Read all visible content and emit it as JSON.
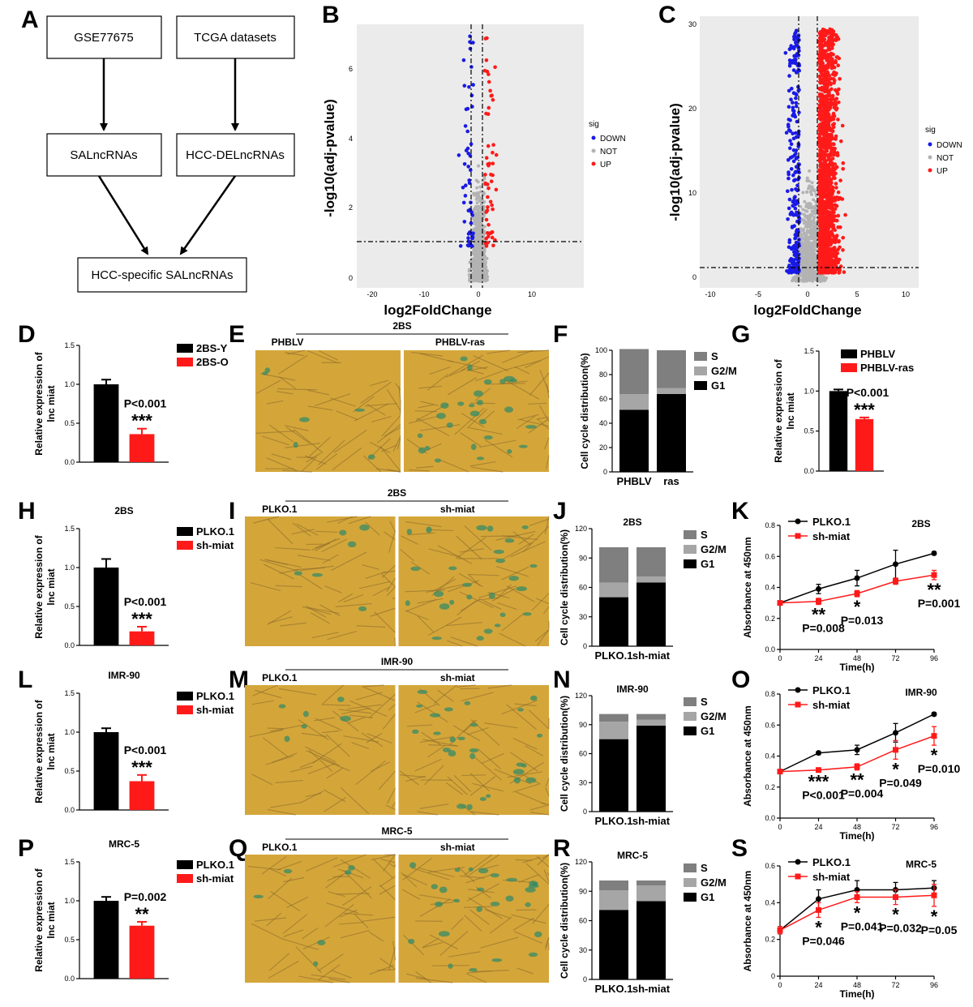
{
  "colors": {
    "red": "#ff1a1a",
    "blue": "#1a1ae6",
    "grey": "#b3b3b3",
    "black": "#000000",
    "g1": "#000000",
    "g2m": "#a6a6a6",
    "s": "#7f7f7f",
    "micro": "#d4a63a",
    "stain": "#2e8a6a"
  },
  "panel_letters": [
    "A",
    "B",
    "C",
    "D",
    "E",
    "F",
    "G",
    "H",
    "I",
    "J",
    "K",
    "L",
    "M",
    "N",
    "O",
    "P",
    "Q",
    "R",
    "S"
  ],
  "flow": {
    "boxes": [
      "GSE77675",
      "TCGA datasets",
      "SALncRNAs",
      "HCC-DELncRNAs",
      "HCC-specific SALncRNAs"
    ]
  },
  "volcano_common": {
    "ylabel": "-log10(adj-pvalue)",
    "xlabel": "log2FoldChange",
    "legend_title": "sig",
    "legend": [
      "DOWN",
      "NOT",
      "UP"
    ]
  },
  "barD": {
    "legend": [
      "2BS-Y",
      "2BS-O"
    ],
    "ylabel": [
      "Relative expression of",
      "lnc miat"
    ],
    "values": [
      1.0,
      0.36
    ],
    "errors": [
      0.06,
      0.07
    ],
    "ylim": [
      0,
      1.5
    ],
    "yticks": [
      "0.0",
      "0.5",
      "1.0",
      "1.5"
    ],
    "p": "P<0.001",
    "stars": "***"
  },
  "barG": {
    "legend": [
      "PHBLV",
      "PHBLV-ras"
    ],
    "ylabel": [
      "Relative expression of",
      "lnc miat"
    ],
    "values": [
      1.0,
      0.65
    ],
    "errors": [
      0.02,
      0.02
    ],
    "ylim": [
      0,
      1.5
    ],
    "yticks": [
      "0.0",
      "0.5",
      "1.0",
      "1.5"
    ],
    "p": "P<0.001",
    "stars": "***"
  },
  "barH": {
    "title": "2BS",
    "legend": [
      "PLKO.1",
      "sh-miat"
    ],
    "ylabel": [
      "Relative expression of",
      "lnc miat"
    ],
    "values": [
      1.0,
      0.18
    ],
    "errors": [
      0.11,
      0.06
    ],
    "ylim": [
      0,
      1.5
    ],
    "yticks": [
      "0.0",
      "0.5",
      "1.0",
      "1.5"
    ],
    "p": "P<0.001",
    "stars": "***"
  },
  "barL": {
    "title": "IMR-90",
    "legend": [
      "PLKO.1",
      "sh-miat"
    ],
    "ylabel": [
      "Relative expression of",
      "lnc miat"
    ],
    "values": [
      1.0,
      0.37
    ],
    "errors": [
      0.05,
      0.08
    ],
    "ylim": [
      0,
      1.5
    ],
    "yticks": [
      "0.0",
      "0.5",
      "1.0",
      "1.5"
    ],
    "p": "P<0.001",
    "stars": "***"
  },
  "barP": {
    "title": "MRC-5",
    "legend": [
      "PLKO.1",
      "sh-miat"
    ],
    "ylabel": [
      "Relative expression of",
      "lnc miat"
    ],
    "values": [
      1.0,
      0.68
    ],
    "errors": [
      0.05,
      0.05
    ],
    "ylim": [
      0,
      1.5
    ],
    "yticks": [
      "0.0",
      "0.5",
      "1.0",
      "1.5"
    ],
    "p": "P=0.002",
    "stars": "**"
  },
  "microE": {
    "title": "2BS",
    "labels": [
      "PHBLV",
      "PHBLV-ras"
    ]
  },
  "microI": {
    "title": "2BS",
    "labels": [
      "PLKO.1",
      "sh-miat"
    ]
  },
  "microM": {
    "title": "IMR-90",
    "labels": [
      "PLKO.1",
      "sh-miat"
    ]
  },
  "microQ": {
    "title": "MRC-5",
    "labels": [
      "PLKO.1",
      "sh-miat"
    ]
  },
  "stackF": {
    "categories": [
      "PHBLV",
      "ras"
    ],
    "ylabel": "Cell cycle distribution(%)",
    "ylim": [
      0,
      100
    ],
    "yticks": [
      "0",
      "20",
      "40",
      "60",
      "80",
      "100"
    ],
    "legend": [
      "S",
      "G2/M",
      "G1"
    ],
    "G1": [
      51,
      64
    ],
    "G2M": [
      13,
      5
    ],
    "S": [
      37,
      31
    ]
  },
  "stackJ": {
    "title": "2BS",
    "categories": [
      "PLKO.1",
      "sh-miat"
    ],
    "ylabel": "Cell cycle distribution(%)",
    "ylim": [
      0,
      120
    ],
    "yticks": [
      "0",
      "30",
      "60",
      "90",
      "120"
    ],
    "legend": [
      "S",
      "G2/M",
      "G1"
    ],
    "G1": [
      50,
      65
    ],
    "G2M": [
      15,
      6
    ],
    "S": [
      36,
      30
    ]
  },
  "stackN": {
    "title": "IMR-90",
    "categories": [
      "PLKO.1",
      "sh-miat"
    ],
    "ylabel": "Cell cycle distribution(%)",
    "ylim": [
      0,
      120
    ],
    "yticks": [
      "0",
      "30",
      "60",
      "90",
      "120"
    ],
    "legend": [
      "S",
      "G2/M",
      "G1"
    ],
    "G1": [
      75,
      89
    ],
    "G2M": [
      18,
      6
    ],
    "S": [
      8,
      6
    ]
  },
  "stackR": {
    "title": "MRC-5",
    "categories": [
      "PLKO.1",
      "sh-miat"
    ],
    "ylabel": "Cell cycle distribution(%)",
    "ylim": [
      0,
      120
    ],
    "yticks": [
      "0",
      "30",
      "60",
      "90",
      "120"
    ],
    "legend": [
      "S",
      "G2/M",
      "G1"
    ],
    "G1": [
      71,
      80
    ],
    "G2M": [
      20,
      16
    ],
    "S": [
      10,
      5
    ]
  },
  "lineK": {
    "title": "2BS",
    "xlabel": "Time(h)",
    "ylabel": "Absorbance at 450nm",
    "x": [
      0,
      24,
      48,
      72,
      96
    ],
    "xticks": [
      "0",
      "24",
      "48",
      "72",
      "96"
    ],
    "ylim": [
      0,
      0.8
    ],
    "yticks": [
      "0.0",
      "0.2",
      "0.4",
      "0.6",
      "0.8"
    ],
    "series": [
      {
        "name": "PLKO.1",
        "values": [
          0.3,
          0.39,
          0.46,
          0.55,
          0.62
        ],
        "errors": [
          0.01,
          0.03,
          0.05,
          0.09,
          0.01
        ]
      },
      {
        "name": "sh-miat",
        "values": [
          0.3,
          0.31,
          0.36,
          0.44,
          0.48
        ],
        "errors": [
          0.01,
          0.02,
          0.02,
          0.02,
          0.03
        ]
      }
    ],
    "annotations": [
      {
        "x": 24,
        "stars": "**",
        "p": "P=0.008"
      },
      {
        "x": 48,
        "stars": "*",
        "p": "P=0.013"
      },
      {
        "x": 96,
        "stars": "**",
        "p": "P=0.001"
      }
    ]
  },
  "lineO": {
    "title": "IMR-90",
    "xlabel": "Time(h)",
    "ylabel": "Absorbance at 450nm",
    "x": [
      0,
      24,
      48,
      72,
      96
    ],
    "xticks": [
      "0",
      "24",
      "48",
      "72",
      "96"
    ],
    "ylim": [
      0,
      0.8
    ],
    "yticks": [
      "0.0",
      "0.2",
      "0.4",
      "0.6",
      "0.8"
    ],
    "series": [
      {
        "name": "PLKO.1",
        "values": [
          0.3,
          0.42,
          0.44,
          0.55,
          0.67
        ],
        "errors": [
          0.01,
          0.01,
          0.03,
          0.06,
          0.01
        ]
      },
      {
        "name": "sh-miat",
        "values": [
          0.3,
          0.31,
          0.33,
          0.44,
          0.53
        ],
        "errors": [
          0.01,
          0.01,
          0.02,
          0.06,
          0.06
        ]
      }
    ],
    "annotations": [
      {
        "x": 24,
        "stars": "***",
        "p": "P<0.001"
      },
      {
        "x": 48,
        "stars": "**",
        "p": "P=0.004"
      },
      {
        "x": 72,
        "stars": "*",
        "p": "P=0.049"
      },
      {
        "x": 96,
        "stars": "*",
        "p": "P=0.010"
      }
    ]
  },
  "lineS": {
    "title": "MRC-5",
    "xlabel": "Time(h)",
    "ylabel": "Absorbance at 450nm",
    "x": [
      0,
      24,
      48,
      72,
      96
    ],
    "xticks": [
      "0",
      "24",
      "48",
      "72",
      "96"
    ],
    "ylim": [
      0,
      0.6
    ],
    "yticks": [
      "0",
      "0.2",
      "0.4",
      "0.6"
    ],
    "series": [
      {
        "name": "PLKO.1",
        "values": [
          0.25,
          0.42,
          0.47,
          0.47,
          0.48
        ],
        "errors": [
          0.02,
          0.05,
          0.05,
          0.04,
          0.04
        ]
      },
      {
        "name": "sh-miat",
        "values": [
          0.25,
          0.36,
          0.43,
          0.43,
          0.44
        ],
        "errors": [
          0.02,
          0.04,
          0.03,
          0.04,
          0.06
        ]
      }
    ],
    "annotations": [
      {
        "x": 24,
        "stars": "*",
        "p": "P=0.046"
      },
      {
        "x": 48,
        "stars": "*",
        "p": "P=0.041"
      },
      {
        "x": 72,
        "stars": "*",
        "p": "P=0.032"
      },
      {
        "x": 96,
        "stars": "*",
        "p": "P=0.05"
      }
    ]
  }
}
